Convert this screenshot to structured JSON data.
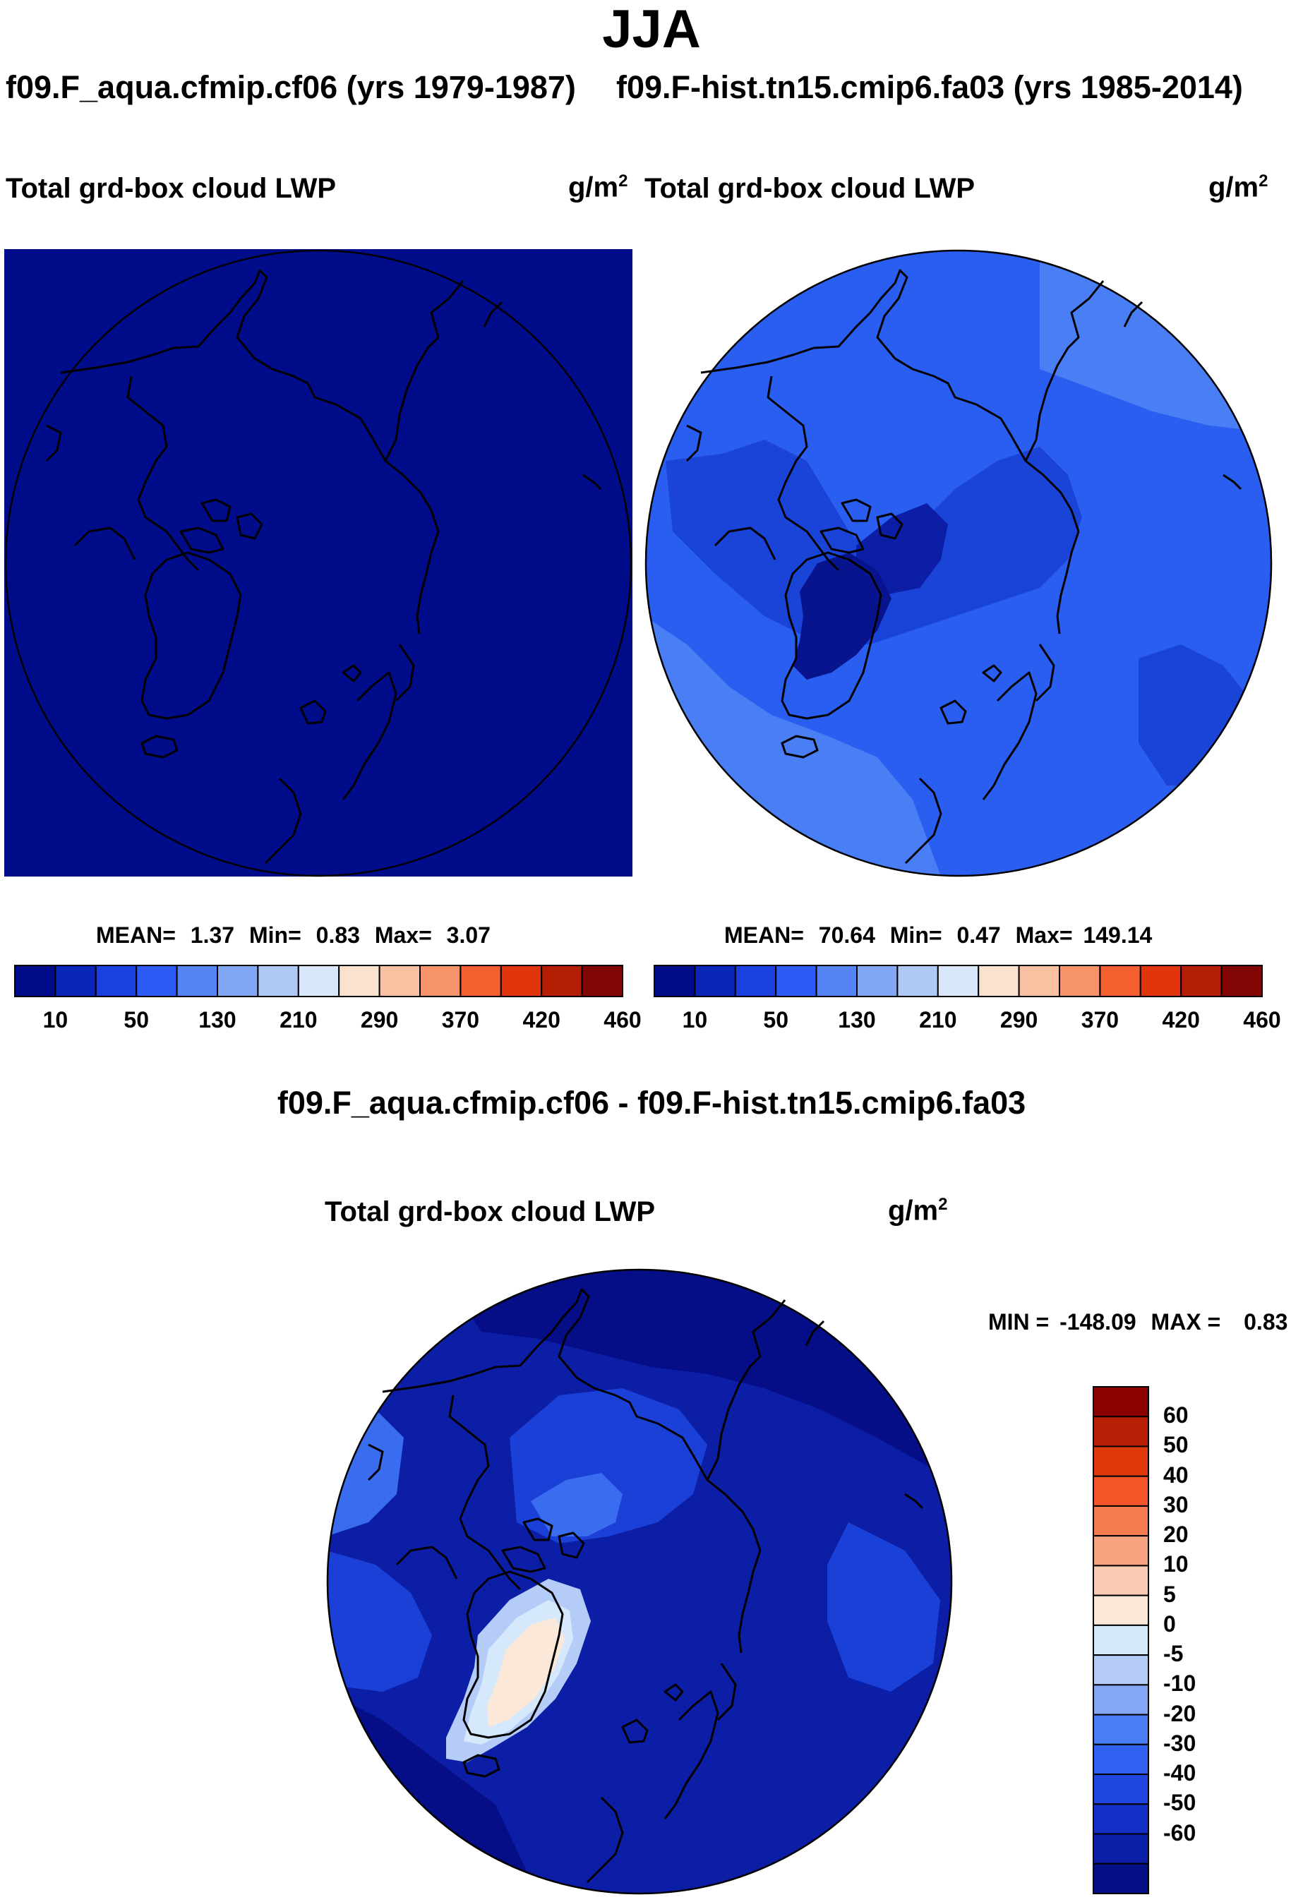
{
  "season": "JJA",
  "panels": [
    {
      "id": "p1",
      "title": "f09.F_aqua.cfmip.cf06 (yrs 1979-1987)",
      "variable": "Total grd-box cloud LWP",
      "units_base": "g/m",
      "units_exp": "2",
      "stats": {
        "mean_label": "MEAN=",
        "mean": "1.37",
        "min_label": "Min=",
        "min": "0.83",
        "max_label": "Max=",
        "max": "3.07"
      }
    },
    {
      "id": "p2",
      "title": "f09.F-hist.tn15.cmip6.fa03 (yrs 1985-2014)",
      "variable": "Total grd-box cloud LWP",
      "units_base": "g/m",
      "units_exp": "2",
      "stats": {
        "mean_label": "MEAN=",
        "mean": "70.64",
        "min_label": "Min=",
        "min": "0.47",
        "max_label": "Max=",
        "max": "149.14"
      }
    }
  ],
  "diff": {
    "title": "f09.F_aqua.cfmip.cf06 - f09.F-hist.tn15.cmip6.fa03",
    "variable": "Total grd-box cloud LWP",
    "units_base": "g/m",
    "units_exp": "2",
    "stats": {
      "min_label": "MIN =",
      "min": "-148.09",
      "max_label": "MAX =",
      "max": "0.83"
    }
  },
  "colorbar_main": {
    "colors": [
      "#000c8a",
      "#0a26b8",
      "#1a40e0",
      "#2c5cf5",
      "#5484f5",
      "#82a8f5",
      "#b0c8f5",
      "#d8e8fa",
      "#fbe2cf",
      "#f9c0a2",
      "#f7936a",
      "#f55e2e",
      "#e0340a",
      "#b41e05",
      "#820505"
    ],
    "tick_labels": [
      "10",
      "50",
      "130",
      "210",
      "290",
      "370",
      "420",
      "460"
    ]
  },
  "colorbar_diff": {
    "colors": [
      "#050e86",
      "#0a1ea6",
      "#1230c6",
      "#2046e0",
      "#3060f0",
      "#4a7ef5",
      "#84a8f5",
      "#b4ccf7",
      "#d6e8fb",
      "#fbe8d8",
      "#f9cbb2",
      "#f7a380",
      "#f57c4e",
      "#f55528",
      "#e03a0c",
      "#b81e04",
      "#8b0000"
    ],
    "tick_labels": [
      "-60",
      "-50",
      "-40",
      "-30",
      "-20",
      "-10",
      "-5",
      "0",
      "5",
      "10",
      "20",
      "30",
      "40",
      "50",
      "60"
    ]
  },
  "field_colors": {
    "p1_background": "#000c8a",
    "p2_base": "#2a5ef0",
    "p2_light": "#4a7ef5",
    "p2_mid": "#1a44d8",
    "p2_dark": "#0c1ea6",
    "p2_greenland": "#08148e",
    "diff_base": "#0c1ea6",
    "diff_mid": "#1a40d8",
    "diff_light": "#3a6cf0",
    "diff_dark": "#050e86",
    "diff_greenland_outer": "#b4ccf7",
    "diff_greenland_inner": "#d6e8fb",
    "diff_greenland_core": "#fbe8d8"
  }
}
